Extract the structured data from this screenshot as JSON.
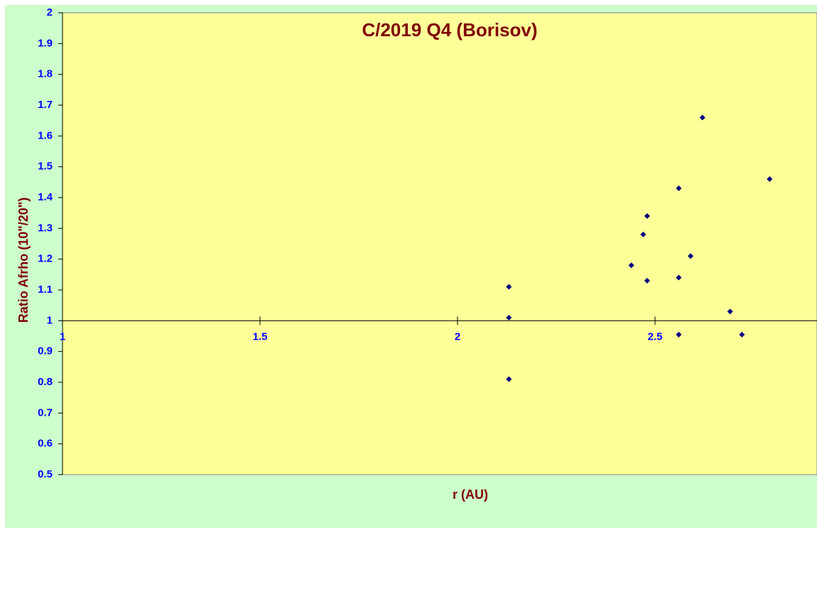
{
  "chart_data": {
    "type": "scatter",
    "title": "C/2019 Q4 (Borisov)",
    "x_label": "r (AU)",
    "y_label": "Ratio Afrho (10\"/20\")",
    "x": [
      2.13,
      2.13,
      2.13,
      2.44,
      2.47,
      2.48,
      2.48,
      2.56,
      2.56,
      2.56,
      2.59,
      2.62,
      2.69,
      2.72,
      2.79
    ],
    "y": [
      1.11,
      1.01,
      0.81,
      1.18,
      1.28,
      1.34,
      1.13,
      1.43,
      1.14,
      0.955,
      1.21,
      1.66,
      1.03,
      0.955,
      1.46
    ],
    "color": "#000080",
    "xlim": [
      1,
      2.91
    ],
    "xticks": [
      1,
      1.5,
      2,
      2.5
    ],
    "ylim": [
      0.5,
      2
    ],
    "yticks": [
      0.5,
      0.6,
      0.7,
      0.8,
      0.9,
      1,
      1.1,
      1.2,
      1.3,
      1.4,
      1.5,
      1.6,
      1.7,
      1.8,
      1.9,
      2
    ],
    "x_axis_at": 1
  }
}
